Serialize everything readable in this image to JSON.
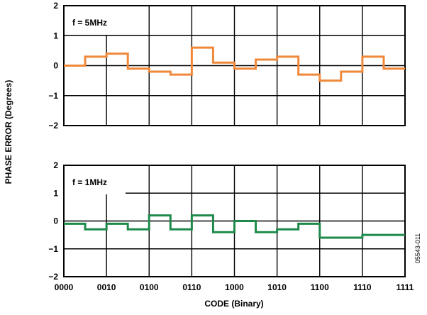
{
  "chart_data": [
    {
      "type": "line",
      "subtitle": "f = 5MHz",
      "ylabel": "PHASE ERROR (Degrees)",
      "ylim": [
        -2,
        2
      ],
      "yticks": [
        "2",
        "1",
        "0",
        "−1",
        "−2"
      ],
      "grid": true,
      "step": true,
      "series": [
        {
          "color": "#f0883a",
          "values": [
            0.0,
            0.3,
            0.4,
            -0.1,
            -0.2,
            -0.3,
            0.6,
            0.1,
            -0.1,
            0.2,
            0.3,
            -0.3,
            -0.5,
            -0.2,
            0.3,
            -0.1
          ]
        }
      ]
    },
    {
      "type": "line",
      "subtitle": "f = 1MHz",
      "ylim": [
        -2,
        2
      ],
      "yticks": [
        "2",
        "1",
        "0",
        "−1",
        "−2"
      ],
      "grid": true,
      "step": true,
      "series": [
        {
          "color": "#1e8a4a",
          "values": [
            -0.1,
            -0.3,
            -0.1,
            -0.3,
            0.2,
            -0.3,
            0.2,
            -0.4,
            0.0,
            -0.4,
            -0.3,
            -0.1,
            -0.6,
            -0.6,
            -0.5,
            -0.5
          ]
        }
      ]
    }
  ],
  "xaxis": {
    "label": "CODE (Binary)",
    "ticks": [
      "0000",
      "0010",
      "0100",
      "0110",
      "1000",
      "1010",
      "1100",
      "1110",
      "1111"
    ]
  },
  "figure_id": "05543-011"
}
